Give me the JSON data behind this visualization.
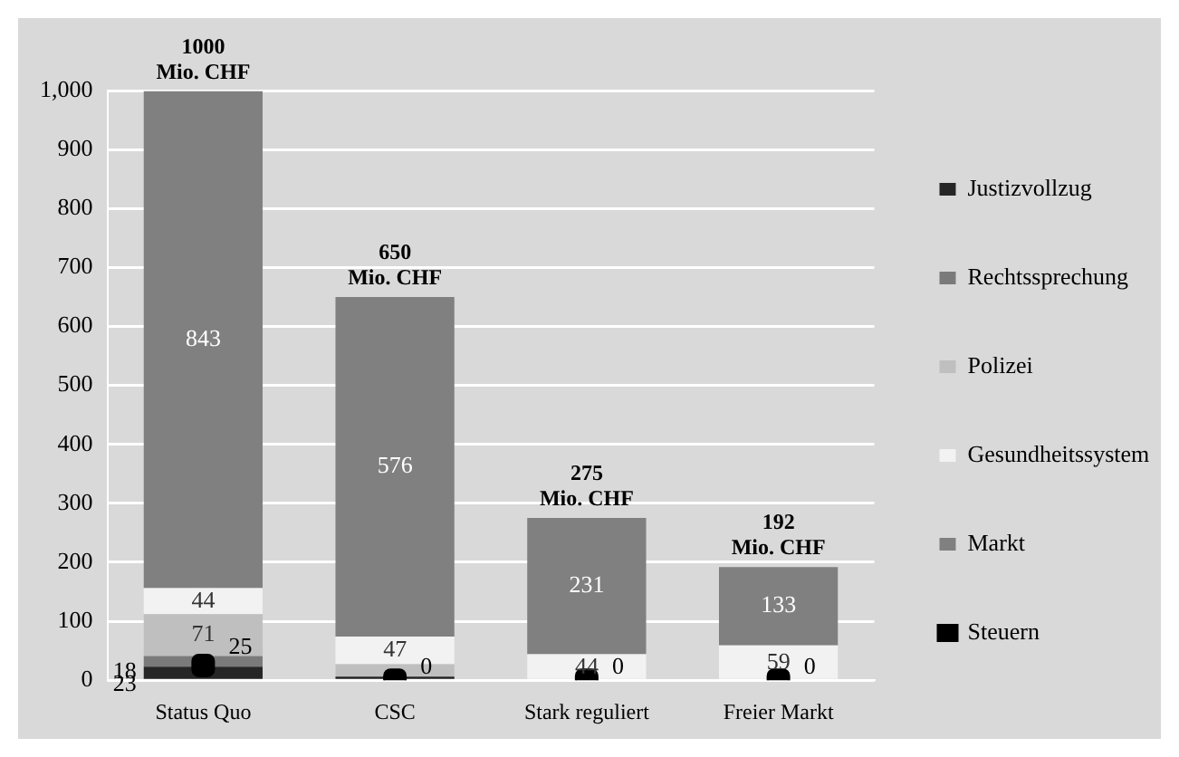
{
  "chart_data": {
    "type": "bar",
    "stacked": true,
    "categories": [
      "Status Quo",
      "CSC",
      "Stark reguliert",
      "Freier Markt"
    ],
    "series": [
      {
        "name": "Justizvollzug",
        "color": "#262626",
        "values": [
          23,
          6,
          0,
          0
        ],
        "value_labels": [
          "23",
          null,
          null,
          null
        ]
      },
      {
        "name": "Rechtssprechung",
        "color": "#7a7a7a",
        "values": [
          18,
          0,
          0,
          0
        ],
        "value_labels": [
          "18",
          null,
          null,
          null
        ]
      },
      {
        "name": "Polizei",
        "color": "#bfbfbf",
        "values": [
          71,
          21,
          0,
          0
        ],
        "value_labels": [
          "71",
          null,
          null,
          null
        ]
      },
      {
        "name": "Gesundheitssystem",
        "color": "#f2f2f2",
        "values": [
          44,
          47,
          44,
          59
        ],
        "value_labels": [
          "44",
          "47",
          "44",
          "59"
        ]
      },
      {
        "name": "Markt",
        "color": "#808080",
        "values": [
          843,
          576,
          231,
          133
        ],
        "value_labels": [
          "843",
          "576",
          "231",
          "133"
        ]
      },
      {
        "name": "Steuern",
        "type": "scatter",
        "color": "#000000",
        "x": [
          "Status Quo",
          "CSC",
          "Stark reguliert",
          "Freier Markt"
        ],
        "values": [
          25,
          0,
          0,
          0
        ],
        "value_labels": [
          "25",
          "0",
          "0",
          "0"
        ]
      }
    ],
    "totals": [
      "1000 Mio. CHF",
      "650 Mio. CHF",
      "275 Mio. CHF",
      "192 Mio. CHF"
    ],
    "ylim": [
      0,
      1000
    ],
    "yticks": [
      0,
      100,
      200,
      300,
      400,
      500,
      600,
      700,
      800,
      900,
      {
        "value": 1000,
        "label": "1,000"
      }
    ],
    "grid": "y",
    "legend": "right",
    "marker": "square"
  }
}
